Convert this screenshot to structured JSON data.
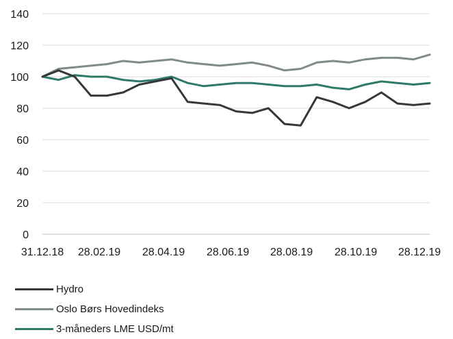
{
  "chart_data": {
    "type": "line",
    "title": "",
    "xlabel": "",
    "ylabel": "",
    "ylim": [
      0,
      140
    ],
    "yticks": [
      "0",
      "20",
      "40",
      "60",
      "80",
      "100",
      "120",
      "140"
    ],
    "xticks": [
      "31.12.18",
      "28.02.19",
      "28.04.19",
      "28.06.19",
      "28.08.19",
      "28.10.19",
      "28.12.19"
    ],
    "grid": true,
    "legend_position": "bottom-left",
    "x": [
      "31.12.18",
      "15.01.19",
      "31.01.19",
      "15.02.19",
      "28.02.19",
      "15.03.19",
      "31.03.19",
      "15.04.19",
      "28.04.19",
      "15.05.19",
      "31.05.19",
      "15.06.19",
      "28.06.19",
      "15.07.19",
      "31.07.19",
      "15.08.19",
      "28.08.19",
      "15.09.19",
      "30.09.19",
      "15.10.19",
      "28.10.19",
      "15.11.19",
      "30.11.19",
      "15.12.19",
      "28.12.19"
    ],
    "series": [
      {
        "name": "Hydro",
        "color": "#33383a",
        "values": [
          100,
          104,
          100,
          88,
          88,
          90,
          95,
          97,
          99,
          84,
          83,
          82,
          78,
          77,
          80,
          70,
          69,
          87,
          84,
          80,
          84,
          90,
          83,
          82,
          83
        ]
      },
      {
        "name": "Oslo Børs Hovedindeks",
        "color": "#7f8a89",
        "values": [
          100,
          105,
          106,
          107,
          108,
          110,
          109,
          110,
          111,
          109,
          108,
          107,
          108,
          109,
          107,
          104,
          105,
          109,
          110,
          109,
          111,
          112,
          112,
          111,
          114
        ]
      },
      {
        "name": "3-måneders LME USD/mt",
        "color": "#2e7a68",
        "values": [
          100,
          98,
          101,
          100,
          100,
          98,
          97,
          98,
          100,
          96,
          94,
          95,
          96,
          96,
          95,
          94,
          94,
          95,
          93,
          92,
          95,
          97,
          96,
          95,
          96
        ]
      }
    ]
  },
  "legend": {
    "items": [
      {
        "label": "Hydro",
        "color": "#33383a"
      },
      {
        "label": "Oslo Børs Hovedindeks",
        "color": "#7f8a89"
      },
      {
        "label": "3-måneders LME USD/mt",
        "color": "#2e7a68"
      }
    ]
  }
}
